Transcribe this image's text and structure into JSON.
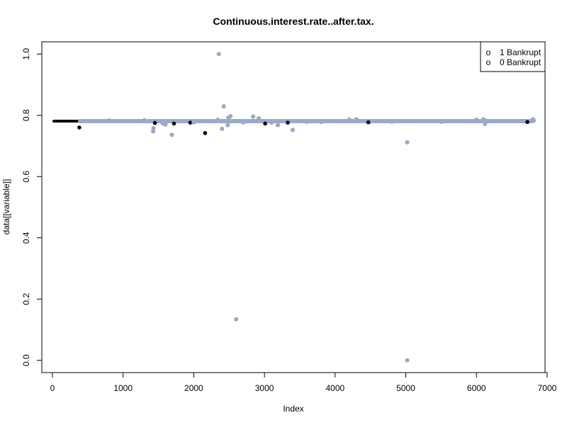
{
  "chart_data": {
    "type": "scatter",
    "title": "Continuous.interest.rate..after.tax.",
    "xlabel": "Index",
    "ylabel": "data[[variable]]",
    "xlim": [
      -150,
      6970
    ],
    "ylim": [
      -0.04,
      1.04
    ],
    "x_ticks": [
      0,
      1000,
      2000,
      3000,
      4000,
      5000,
      6000,
      7000
    ],
    "y_ticks": [
      0.0,
      0.2,
      0.4,
      0.6,
      0.8,
      1.0
    ],
    "y_tick_labels": [
      "0.0",
      "0.2",
      "0.4",
      "0.6",
      "0.8",
      "1.0"
    ],
    "grid": false,
    "legend_position": "top-right",
    "legend_symbol": "o",
    "series": [
      {
        "name": "1 Bankrupt",
        "color": "#000000",
        "band": {
          "x_from": 0,
          "x_to": 6819,
          "y": 0.781
        },
        "points": [
          {
            "x": 380,
            "y": 0.76
          },
          {
            "x": 1450,
            "y": 0.775
          },
          {
            "x": 1720,
            "y": 0.773
          },
          {
            "x": 1950,
            "y": 0.776
          },
          {
            "x": 2160,
            "y": 0.742
          },
          {
            "x": 3010,
            "y": 0.773
          },
          {
            "x": 3330,
            "y": 0.776
          },
          {
            "x": 4470,
            "y": 0.777
          },
          {
            "x": 6720,
            "y": 0.778
          }
        ]
      },
      {
        "name": "0 Bankrupt",
        "color": "#9aaac8",
        "band": {
          "x_from": 360,
          "x_to": 6819,
          "y": 0.781
        },
        "points": [
          {
            "x": 2355,
            "y": 1.0
          },
          {
            "x": 2425,
            "y": 0.829
          },
          {
            "x": 2400,
            "y": 0.756
          },
          {
            "x": 2600,
            "y": 0.134
          },
          {
            "x": 5020,
            "y": 0.0
          },
          {
            "x": 5020,
            "y": 0.712
          },
          {
            "x": 1690,
            "y": 0.736
          },
          {
            "x": 1425,
            "y": 0.748
          },
          {
            "x": 1430,
            "y": 0.758
          },
          {
            "x": 1560,
            "y": 0.774
          },
          {
            "x": 1600,
            "y": 0.77
          },
          {
            "x": 3400,
            "y": 0.752
          },
          {
            "x": 3190,
            "y": 0.768
          },
          {
            "x": 2840,
            "y": 0.796
          },
          {
            "x": 2920,
            "y": 0.79
          },
          {
            "x": 2520,
            "y": 0.797
          },
          {
            "x": 2490,
            "y": 0.792
          },
          {
            "x": 2480,
            "y": 0.768
          },
          {
            "x": 2000,
            "y": 0.777
          },
          {
            "x": 2340,
            "y": 0.785
          },
          {
            "x": 3100,
            "y": 0.776
          },
          {
            "x": 3800,
            "y": 0.778
          },
          {
            "x": 4200,
            "y": 0.786
          },
          {
            "x": 4300,
            "y": 0.787
          },
          {
            "x": 6000,
            "y": 0.786
          },
          {
            "x": 6100,
            "y": 0.787
          },
          {
            "x": 6120,
            "y": 0.772
          },
          {
            "x": 6800,
            "y": 0.787
          },
          {
            "x": 6810,
            "y": 0.783
          },
          {
            "x": 800,
            "y": 0.783
          },
          {
            "x": 1300,
            "y": 0.784
          },
          {
            "x": 2700,
            "y": 0.777
          },
          {
            "x": 3600,
            "y": 0.779
          },
          {
            "x": 4800,
            "y": 0.779
          },
          {
            "x": 5500,
            "y": 0.779
          }
        ]
      }
    ]
  }
}
